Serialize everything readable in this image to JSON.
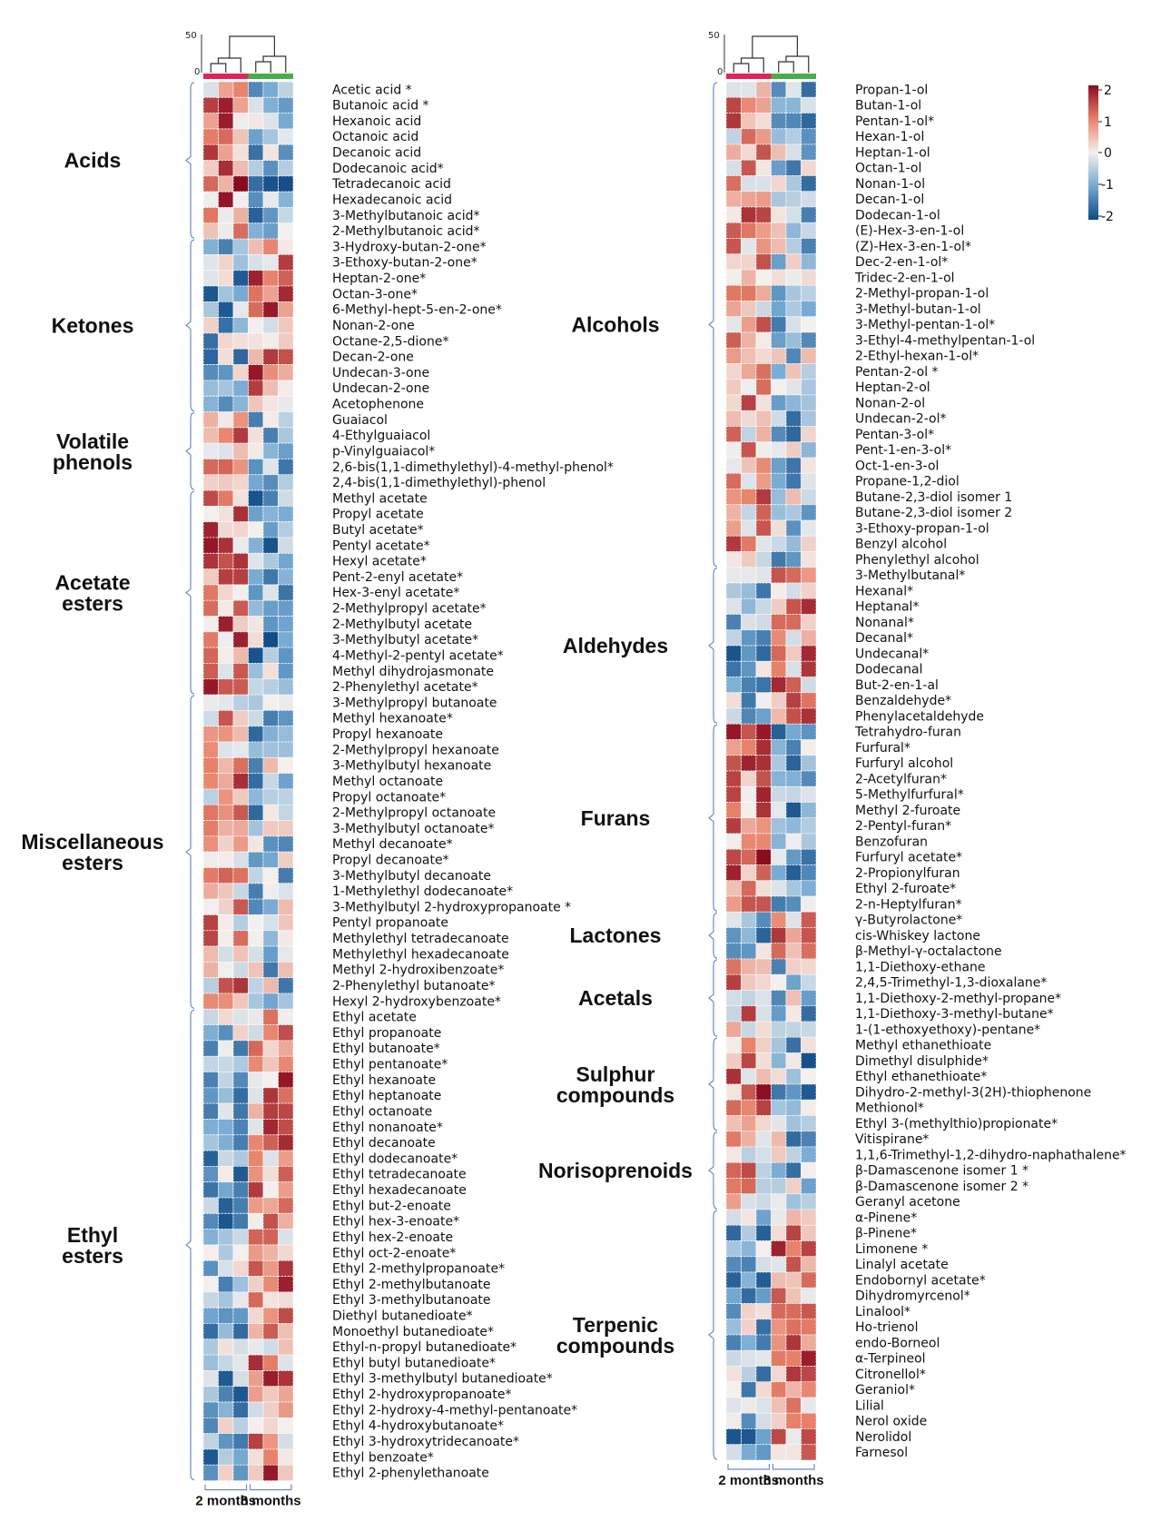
{
  "chart_data": [
    {
      "type": "heatmap",
      "title": "",
      "xlabel": "",
      "ylabel": "",
      "groups": [
        {
          "label": "2 months",
          "samples": 3,
          "color": "#e0245a"
        },
        {
          "label": "8 months",
          "samples": 3,
          "color": "#4aae48"
        }
      ],
      "dendrogram_axis": {
        "ticks": [
          "50",
          "0"
        ],
        "range": [
          0,
          50
        ]
      },
      "categories": [
        {
          "name": "Acids",
          "compounds": [
            "Acetic acid *",
            "Butanoic acid *",
            "Hexanoic acid",
            "Octanoic  acid",
            "Decanoic  acid",
            "Dodecanoic  acid*",
            "Tetradecanoic  acid",
            "Hexadecanoic acid",
            "3-Methylbutanoic acid*",
            "2-Methylbutanoic acid*"
          ]
        },
        {
          "name": "Ketones",
          "compounds": [
            "3-Hydroxy-butan-2-one*",
            "3-Ethoxy-butan-2-one*",
            "Heptan-2-one*",
            "Octan-3-one*",
            "6-Methyl-hept-5-en-2-one*",
            "Nonan-2-one",
            "Octane-2,5-dione*",
            "Decan-2-one",
            "Undecan-3-one",
            "Undecan-2-one",
            "Acetophenone"
          ]
        },
        {
          "name": "Volatile phenols",
          "compounds": [
            "Guaiacol",
            "4-Ethylguaiacol",
            "p-Vinylguaiacol*",
            "2,6-bis(1,1-dimethylethyl)-4-methyl-phenol*",
            "2,4-bis(1,1-dimethylethyl)-phenol"
          ]
        },
        {
          "name": "Acetate esters",
          "compounds": [
            "Methyl acetate",
            "Propyl acetate",
            "Butyl acetate*",
            "Pentyl acetate*",
            "Hexyl acetate*",
            "Pent-2-enyl acetate*",
            "Hex-3-enyl acetate*",
            "2-Methylpropyl acetate*",
            "2-Methylbutyl acetate",
            "3-Methylbutyl acetate*",
            "4-Methyl-2-pentyl acetate*",
            "Methyl dihydrojasmonate",
            "2-Phenylethyl acetate*"
          ]
        },
        {
          "name": "Miscellaneous esters",
          "compounds": [
            "3-Methylpropyl butanoate",
            "Methyl hexanoate*",
            "Propyl hexanoate",
            "2-Methylpropyl hexanoate",
            "3-Methylbutyl hexanoate",
            "Methyl octanoate",
            "Propyl octanoate*",
            "2-Methylpropyl octanoate",
            "3-Methylbutyl octanoate*",
            "Methyl decanoate*",
            "Propyl decanoate*",
            "3-Methylbutyl decanoate",
            "1-Methylethyl dodecanoate*",
            "3-Methylbutyl 2-hydroxypropanoate *",
            "Pentyl propanoate",
            "Methylethyl tetradecanoate",
            "Methylethyl hexadecanoate",
            "Methyl 2-hydroxibenzoate*",
            "2-Phenylethyl butanoate*",
            "Hexyl 2-hydroxybenzoate*"
          ]
        },
        {
          "name": "Ethyl esters",
          "compounds": [
            "Ethyl acetate",
            "Ethyl propanoate",
            "Ethyl butanoate*",
            "Ethyl pentanoate*",
            "Ethyl hexanoate",
            "Ethyl heptanoate",
            "Ethyl octanoate",
            "Ethyl nonanoate*",
            "Ethyl decanoate",
            "Ethyl dodecanoate*",
            "Ethyl tetradecanoate",
            "Ethyl hexadecanoate",
            "Ethyl but-2-enoate",
            "Ethyl hex-3-enoate*",
            "Ethyl hex-2-enoate",
            "Ethyl oct-2-enoate*",
            "Ethyl 2-methylpropanoate*",
            "Ethyl 2-methylbutanoate",
            "Ethyl 3-methylbutanoate",
            "Diethyl butanedioate*",
            "Monoethyl butanedioate*",
            "Ethyl-n-propyl butanedioate*",
            "Ethyl butyl butanedioate*",
            "Ethyl 3-methylbutyl butanedioate*",
            "Ethyl 2-hydroxypropanoate*",
            "Ethyl 2-hydroxy-4-methyl-pentanoate*",
            "Ethyl 4-hydroxybutanoate*",
            "Ethyl 3-hydroxytridecanoate*",
            "Ethyl benzoate*",
            "Ethyl 2-phenylethanoate"
          ]
        }
      ]
    },
    {
      "type": "heatmap",
      "title": "",
      "xlabel": "",
      "ylabel": "",
      "groups": [
        {
          "label": "2 months",
          "samples": 3,
          "color": "#e0245a"
        },
        {
          "label": "8 months",
          "samples": 3,
          "color": "#4aae48"
        }
      ],
      "dendrogram_axis": {
        "ticks": [
          "50",
          "0"
        ],
        "range": [
          0,
          50
        ]
      },
      "categories": [
        {
          "name": "Alcohols",
          "compounds": [
            "Propan-1-ol",
            "Butan-1-ol",
            "Pentan-1-ol*",
            "Hexan-1-ol",
            "Heptan-1-ol",
            "Octan-1-ol",
            "Nonan-1-ol",
            "Decan-1-ol",
            "Dodecan-1-ol",
            "(E)-Hex-3-en-1-ol",
            "(Z)-Hex-3-en-1-ol*",
            "Dec-2-en-1-ol*",
            "Tridec-2-en-1-ol",
            "2-Methyl-propan-1-ol",
            "3-Methyl-butan-1-ol",
            "3-Methyl-pentan-1-ol*",
            "3-Ethyl-4-methylpentan-1-ol",
            "2-Ethyl-hexan-1-ol*",
            "Pentan-2-ol *",
            "Heptan-2-ol",
            "Nonan-2-ol",
            "Undecan-2-ol*",
            "Pentan-3-ol*",
            "Pent-1-en-3-ol*",
            "Oct-1-en-3-ol",
            "Propane-1,2-diol",
            "Butane-2,3-diol isomer 1",
            "Butane-2,3-diol isomer 2",
            "3-Ethoxy-propan-1-ol",
            "Benzyl alcohol",
            "Phenylethyl alcohol"
          ]
        },
        {
          "name": "Aldehydes",
          "compounds": [
            "3-Methylbutanal*",
            "Hexanal*",
            "Heptanal*",
            "Nonanal*",
            "Decanal*",
            "Undecanal*",
            "Dodecanal",
            "But-2-en-1-al",
            "Benzaldehyde*",
            "Phenylacetaldehyde"
          ]
        },
        {
          "name": "Furans",
          "compounds": [
            "Tetrahydro-furan",
            "Furfural*",
            "Furfuryl alcohol",
            "2-Acetylfuran*",
            "5-Methylfurfural*",
            "Methyl 2-furoate",
            "2-Pentyl-furan*",
            "Benzofuran",
            "Furfuryl acetate*",
            "2-Propionylfuran",
            "Ethyl 2-furoate*",
            "2-n-Heptylfuran*"
          ]
        },
        {
          "name": "Lactones",
          "compounds": [
            "γ-Butyrolactone*",
            "cis-Whiskey lactone",
            "β-Methyl-γ-octalactone"
          ]
        },
        {
          "name": "Acetals",
          "compounds": [
            "1,1-Diethoxy-ethane",
            "2,4,5-Trimethyl-1,3-dioxalane*",
            "1,1-Diethoxy-2-methyl-propane*",
            "1,1-Diethoxy-3-methyl-butane*",
            "1-(1-ethoxyethoxy)-pentane*"
          ]
        },
        {
          "name": "Sulphur compounds",
          "compounds": [
            "Methyl ethanethioate",
            "Dimethyl disulphide*",
            "Ethyl ethanethioate*",
            "Dihydro-2-methyl-3(2H)-thiophenone",
            "Methionol*",
            "Ethyl 3-(methylthio)propionate*"
          ]
        },
        {
          "name": "Norisoprenoids",
          "compounds": [
            "Vitispirane*",
            "1,1,6-Trimethyl-1,2-dihydro-naphathalene*",
            "β-Damascenone isomer 1 *",
            "β-Damascenone isomer 2 *",
            "Geranyl acetone"
          ]
        },
        {
          "name": "Terpenic compounds",
          "compounds": [
            "α-Pinene*",
            "β-Pinene*",
            "Limonene *",
            "Linalyl acetate",
            "Endobornyl acetate*",
            "Dihydromyrcenol*",
            "Linalool*",
            "Ho-trienol",
            "endo-Borneol",
            "α-Terpineol",
            "Citronellol*",
            "Geraniol*",
            "Lilial",
            "Nerol oxide",
            "Nerolidol",
            "Farnesol"
          ]
        }
      ]
    }
  ],
  "color_scale": {
    "ticks": [
      "2",
      "1",
      "0",
      "-1",
      "-2"
    ],
    "range": [
      -2,
      2
    ],
    "colors": {
      "max": "#8b0a20",
      "high": "#e8826a",
      "mid": "#f4f0ee",
      "low": "#74a9d2",
      "min": "#0f4a85"
    }
  }
}
